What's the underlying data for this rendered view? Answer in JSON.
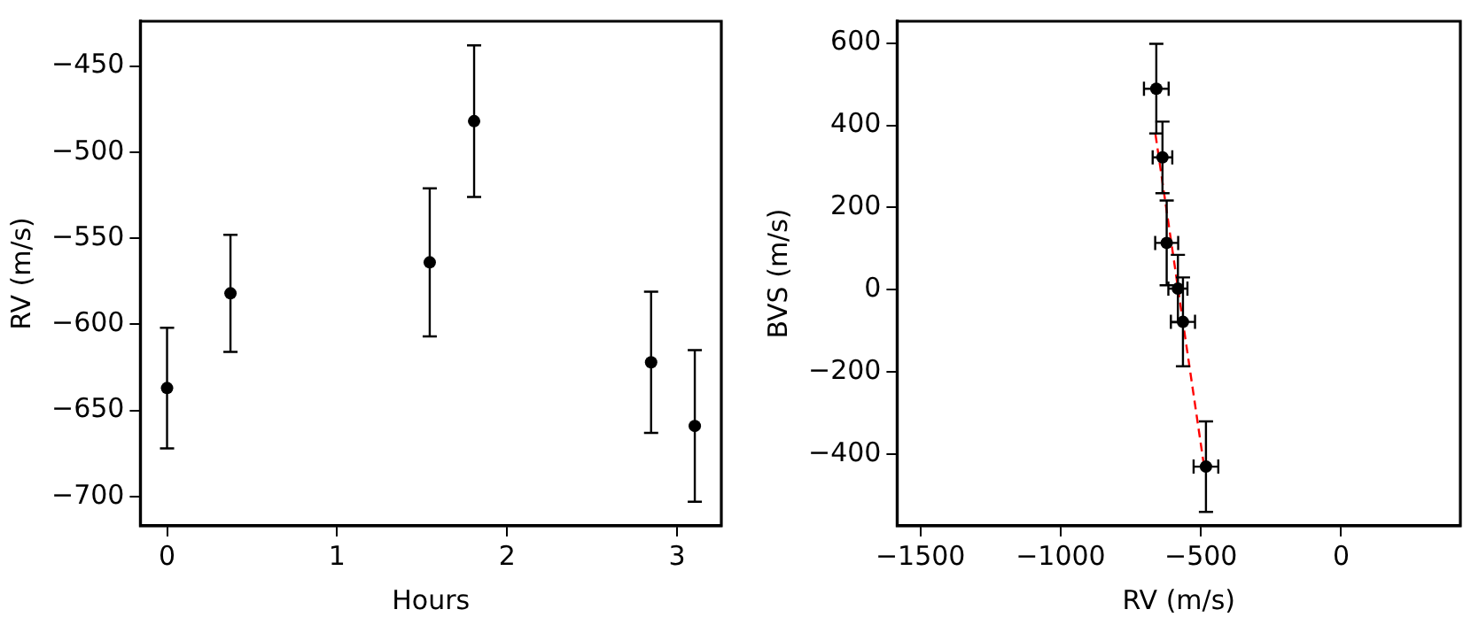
{
  "chart_data": [
    {
      "type": "scatter",
      "xlabel": "Hours",
      "ylabel": "RV (m/s)",
      "xlim": [
        -0.157,
        3.26
      ],
      "xticks": [
        0,
        1,
        2,
        3
      ],
      "ylim": [
        -717,
        -424
      ],
      "yticks": [
        -450,
        -500,
        -550,
        -600,
        -650,
        -700
      ],
      "grid": false,
      "marker": "circle",
      "series": [
        {
          "color": "#000000",
          "x": [
            0,
            0.373,
            1.545,
            1.806,
            2.847,
            3.104
          ],
          "values": [
            -637,
            -582,
            -564,
            -482,
            -622,
            -659
          ],
          "errors": [
            35,
            34,
            43,
            44,
            41,
            44
          ]
        }
      ]
    },
    {
      "type": "scatter",
      "xlabel": "RV (m/s)",
      "ylabel": "BVS (m/s)",
      "xlim": [
        -1583,
        425
      ],
      "xticks": [
        -1500,
        -1000,
        -500,
        0
      ],
      "ylim": [
        -574,
        653
      ],
      "yticks": [
        -400,
        -200,
        0,
        200,
        400,
        600
      ],
      "grid": false,
      "marker": "circle",
      "series": [
        {
          "color": "#000000",
          "x": [
            -659,
            -637,
            -622,
            -582,
            -564,
            -482
          ],
          "values": [
            489,
            322,
            114,
            3,
            -78,
            -430
          ],
          "errors": [
            109,
            87,
            103,
            82,
            108,
            110
          ],
          "xerrors": [
            44,
            35,
            41,
            34,
            43,
            44
          ]
        },
        {
          "type": "line",
          "color": "#ff0000",
          "line_style": "dashed",
          "marker": "none",
          "x": [
            -662,
            -487
          ],
          "values": [
            378,
            -437
          ]
        }
      ]
    }
  ]
}
